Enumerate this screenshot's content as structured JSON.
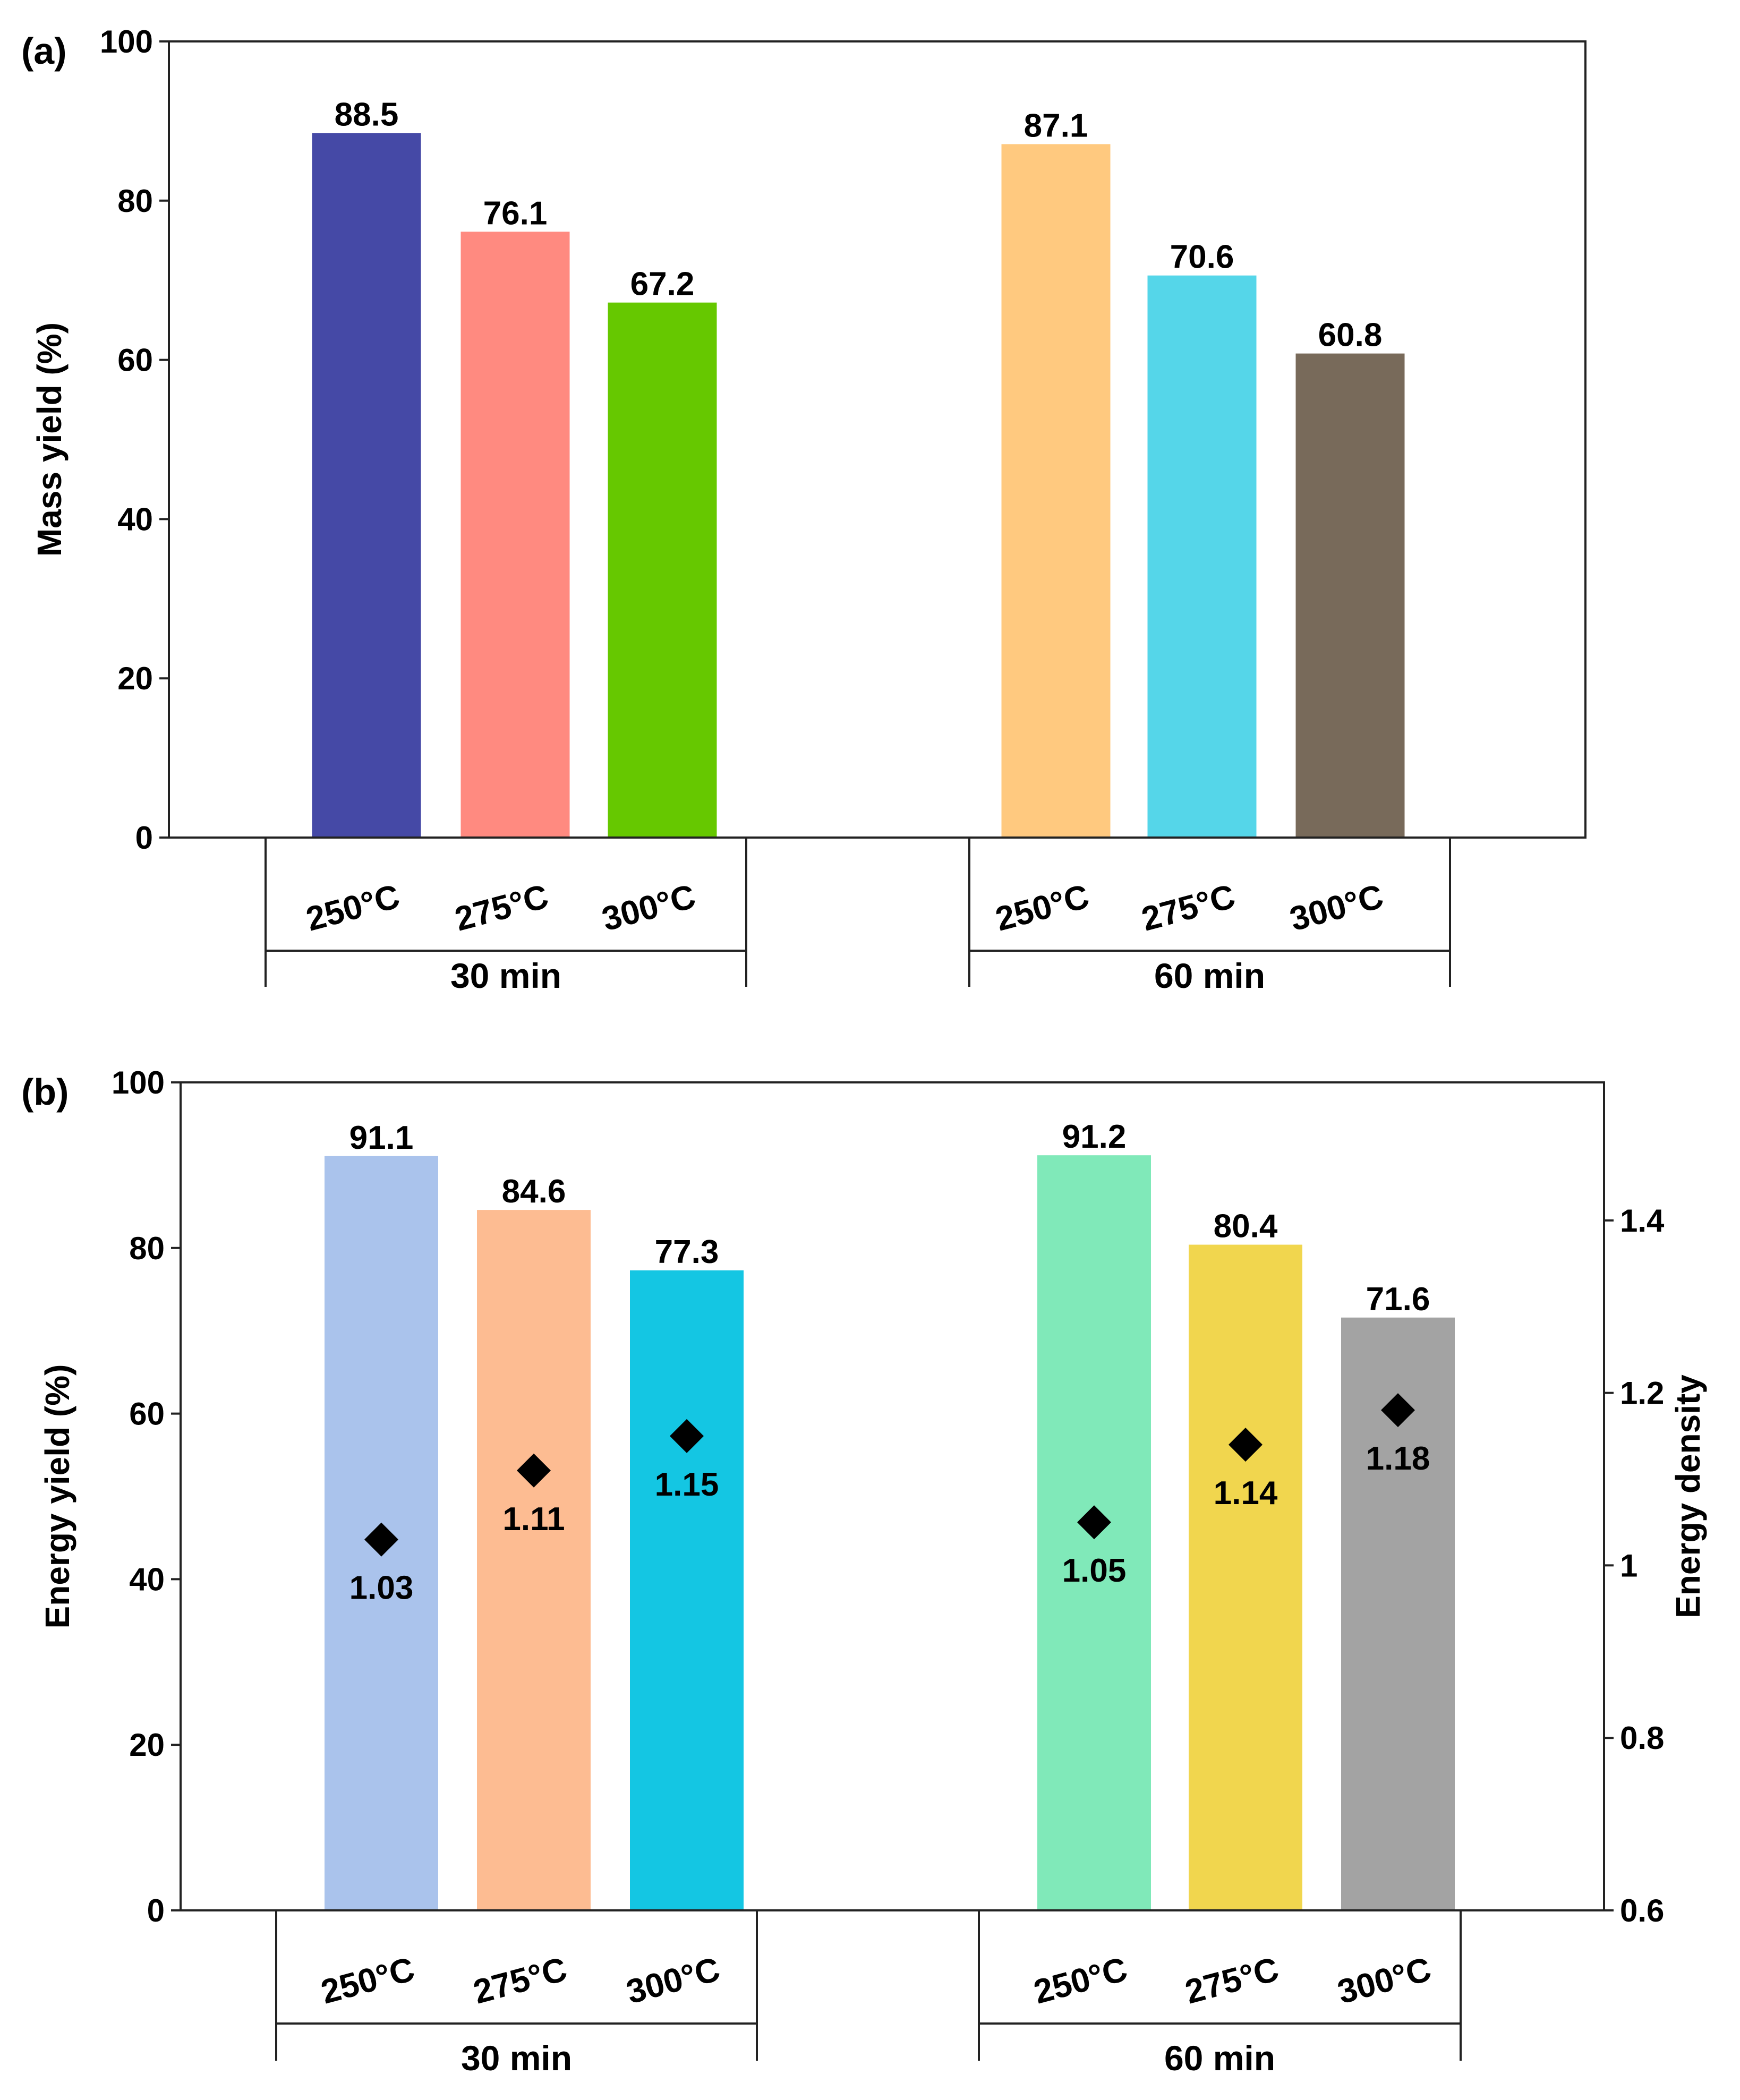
{
  "chart_data": [
    {
      "panel_label": "(a)",
      "type": "bar",
      "ylabel": "Mass yield (%)",
      "ylim": [
        0,
        100
      ],
      "yticks": [
        0,
        20,
        40,
        60,
        80,
        100
      ],
      "groups": [
        {
          "name": "30 min",
          "categories": [
            "250°C",
            "275°C",
            "300°C"
          ],
          "values": [
            88.5,
            76.1,
            67.2
          ],
          "labels": [
            "88.5",
            "76.1",
            "67.2"
          ],
          "colors": [
            "#4549a6",
            "#ff8a80",
            "#66c800"
          ]
        },
        {
          "name": "60 min",
          "categories": [
            "250°C",
            "275°C",
            "300°C"
          ],
          "values": [
            87.1,
            70.6,
            60.8
          ],
          "labels": [
            "87.1",
            "70.6",
            "60.8"
          ],
          "colors": [
            "#ffc97f",
            "#55d6e9",
            "#786a5a"
          ]
        }
      ]
    },
    {
      "panel_label": "(b)",
      "type": "bar",
      "ylabel": "Energy yield (%)",
      "ylim": [
        0,
        100
      ],
      "yticks": [
        0,
        20,
        40,
        60,
        80,
        100
      ],
      "y2label": "Energy density",
      "y2lim": [
        0.6,
        1.56
      ],
      "y2ticks": [
        0.6,
        0.8,
        1,
        1.2,
        1.4
      ],
      "y2ticklabels": [
        "0.6",
        "0.8",
        "1",
        "1.2",
        "1.4"
      ],
      "groups": [
        {
          "name": "30 min",
          "categories": [
            "250°C",
            "275°C",
            "300°C"
          ],
          "values": [
            91.1,
            84.6,
            77.3
          ],
          "labels": [
            "91.1",
            "84.6",
            "77.3"
          ],
          "colors": [
            "#aac3ec",
            "#fdbc92",
            "#14c6e3"
          ],
          "energy_density": [
            1.03,
            1.11,
            1.15
          ],
          "energy_density_labels": [
            "1.03",
            "1.11",
            "1.15"
          ]
        },
        {
          "name": "60 min",
          "categories": [
            "250°C",
            "275°C",
            "300°C"
          ],
          "values": [
            91.2,
            80.4,
            71.6
          ],
          "labels": [
            "91.2",
            "80.4",
            "71.6"
          ],
          "colors": [
            "#80e9b9",
            "#f1d64e",
            "#a3a3a3"
          ],
          "energy_density": [
            1.05,
            1.14,
            1.18
          ],
          "energy_density_labels": [
            "1.05",
            "1.14",
            "1.18"
          ]
        }
      ]
    }
  ]
}
